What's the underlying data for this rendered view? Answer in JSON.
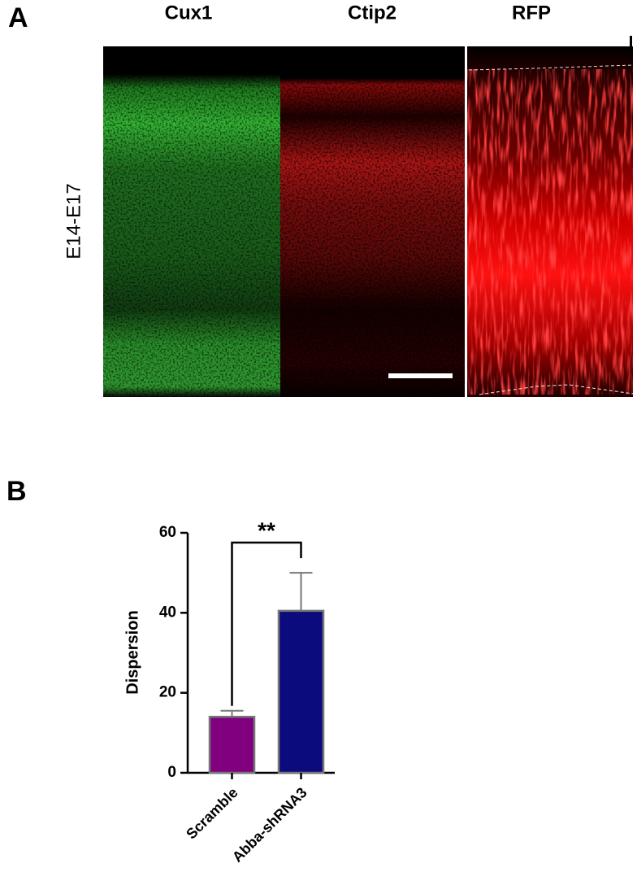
{
  "panel_a": {
    "label": "A",
    "columns": [
      "Cux1",
      "Ctip2",
      "RFP"
    ],
    "row_label": "E14-E17"
  },
  "panel_b": {
    "label": "B"
  },
  "chart_data": {
    "type": "bar",
    "y_label": "Dispersion",
    "categories": [
      "Scramble",
      "Abba-shRNA3"
    ],
    "values": [
      14,
      40.5
    ],
    "errors": [
      1.5,
      9.5
    ],
    "colors": [
      "#800080",
      "#0b0b7e"
    ],
    "ylim": [
      0,
      60
    ],
    "yticks": [
      0,
      20,
      40,
      60
    ],
    "annotation": "**"
  }
}
